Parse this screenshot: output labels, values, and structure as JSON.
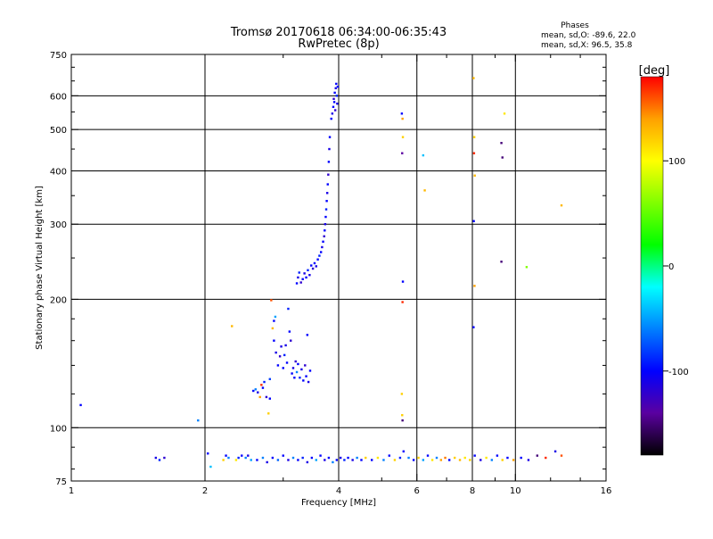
{
  "header": {
    "title": "Tromsø 20170618 06:34:00-06:35:43",
    "subtitle": "RwPretec (8p)"
  },
  "phase_stats": {
    "heading": "Phases",
    "line_o": "mean, sd,O: -89.6, 22.0",
    "line_x": "mean, sd,X:  96.5, 35.8"
  },
  "colorbar": {
    "unit_label": "[deg]",
    "range": [
      -180,
      180
    ],
    "ticks": [
      {
        "value": 100,
        "label": "100"
      },
      {
        "value": 0,
        "label": "0"
      },
      {
        "value": -100,
        "label": "-100"
      }
    ],
    "colors": [
      "#000000",
      "#5a00a0",
      "#0000ff",
      "#0080ff",
      "#00ffff",
      "#00ff00",
      "#80ff00",
      "#ffff00",
      "#ffa000",
      "#ff0000"
    ]
  },
  "chart_data": {
    "type": "scatter",
    "xlabel": "Frequency [MHz]",
    "ylabel": "Stationary phase Virtual Height [km]",
    "x_scale": "log2",
    "y_scale": "log",
    "xlim": [
      1,
      16
    ],
    "ylim": [
      75,
      750
    ],
    "x_ticks": [
      {
        "value": 1,
        "label": "1"
      },
      {
        "value": 2,
        "label": "2"
      },
      {
        "value": 4,
        "label": "4"
      },
      {
        "value": 6,
        "label": "6"
      },
      {
        "value": 8,
        "label": "8"
      },
      {
        "value": 10,
        "label": "10"
      },
      {
        "value": 16,
        "label": "16"
      }
    ],
    "y_ticks": [
      {
        "value": 75,
        "label": "75"
      },
      {
        "value": 100,
        "label": "100"
      },
      {
        "value": 200,
        "label": "200"
      },
      {
        "value": 300,
        "label": "300"
      },
      {
        "value": 400,
        "label": "400"
      },
      {
        "value": 500,
        "label": "500"
      },
      {
        "value": 600,
        "label": "600"
      },
      {
        "value": 750,
        "label": "750"
      }
    ],
    "grid_x": [
      2,
      4,
      6,
      8,
      10
    ],
    "grid_y": [
      100,
      200,
      300,
      400,
      500,
      600
    ],
    "points": [
      [
        1.05,
        113,
        -100
      ],
      [
        1.55,
        85,
        -110
      ],
      [
        1.58,
        84,
        -90
      ],
      [
        1.62,
        85,
        -120
      ],
      [
        1.93,
        104,
        -60
      ],
      [
        2.03,
        87,
        -100
      ],
      [
        2.06,
        81,
        -40
      ],
      [
        2.2,
        84,
        120
      ],
      [
        2.23,
        86,
        -100
      ],
      [
        2.26,
        85,
        -60
      ],
      [
        2.3,
        173,
        130
      ],
      [
        2.35,
        84,
        110
      ],
      [
        2.38,
        85,
        -90
      ],
      [
        2.42,
        86,
        -100
      ],
      [
        2.47,
        85,
        -60
      ],
      [
        2.5,
        86,
        -110
      ],
      [
        2.54,
        84,
        -50
      ],
      [
        2.57,
        122,
        -100
      ],
      [
        2.6,
        123,
        -60
      ],
      [
        2.63,
        121,
        -110
      ],
      [
        2.66,
        118,
        140
      ],
      [
        2.68,
        126,
        170
      ],
      [
        2.7,
        124,
        -100
      ],
      [
        2.72,
        128,
        -90
      ],
      [
        2.75,
        118,
        -120
      ],
      [
        2.78,
        108,
        120
      ],
      [
        2.8,
        117,
        -100
      ],
      [
        2.8,
        130,
        -80
      ],
      [
        2.82,
        199,
        160
      ],
      [
        2.84,
        171,
        130
      ],
      [
        2.86,
        178,
        -100
      ],
      [
        2.88,
        182,
        -50
      ],
      [
        2.86,
        160,
        -100
      ],
      [
        2.89,
        150,
        -110
      ],
      [
        2.92,
        140,
        -100
      ],
      [
        2.95,
        147,
        -120
      ],
      [
        2.97,
        155,
        -110
      ],
      [
        3.0,
        138,
        -100
      ],
      [
        3.02,
        148,
        -90
      ],
      [
        3.04,
        156,
        -110
      ],
      [
        3.06,
        142,
        -100
      ],
      [
        3.08,
        190,
        -90
      ],
      [
        3.1,
        168,
        -100
      ],
      [
        3.12,
        160,
        -120
      ],
      [
        3.14,
        134,
        -100
      ],
      [
        3.16,
        138,
        -110
      ],
      [
        3.18,
        131,
        -100
      ],
      [
        3.2,
        143,
        -120
      ],
      [
        3.22,
        135,
        -60
      ],
      [
        3.24,
        141,
        -100
      ],
      [
        3.27,
        131,
        -90
      ],
      [
        3.3,
        137,
        -110
      ],
      [
        3.33,
        129,
        -100
      ],
      [
        3.36,
        140,
        -120
      ],
      [
        3.38,
        132,
        -100
      ],
      [
        3.4,
        165,
        -100
      ],
      [
        3.42,
        128,
        -110
      ],
      [
        3.45,
        136,
        -100
      ],
      [
        3.22,
        218,
        -100
      ],
      [
        3.24,
        225,
        -110
      ],
      [
        3.26,
        231,
        -90
      ],
      [
        3.29,
        219,
        -120
      ],
      [
        3.32,
        223,
        -100
      ],
      [
        3.35,
        230,
        -110
      ],
      [
        3.38,
        225,
        -100
      ],
      [
        3.41,
        234,
        -90
      ],
      [
        3.44,
        228,
        -110
      ],
      [
        3.47,
        240,
        -100
      ],
      [
        3.5,
        236,
        -120
      ],
      [
        3.53,
        243,
        -100
      ],
      [
        3.56,
        239,
        -110
      ],
      [
        3.59,
        248,
        -100
      ],
      [
        3.62,
        253,
        -90
      ],
      [
        3.65,
        258,
        -100
      ],
      [
        3.67,
        265,
        -110
      ],
      [
        3.69,
        273,
        -100
      ],
      [
        3.71,
        281,
        -120
      ],
      [
        3.72,
        290,
        -100
      ],
      [
        3.73,
        300,
        -110
      ],
      [
        3.74,
        312,
        -100
      ],
      [
        3.75,
        325,
        -90
      ],
      [
        3.76,
        340,
        -100
      ],
      [
        3.77,
        355,
        -110
      ],
      [
        3.78,
        372,
        -100
      ],
      [
        3.79,
        392,
        -120
      ],
      [
        3.8,
        420,
        -100
      ],
      [
        3.81,
        450,
        -110
      ],
      [
        3.82,
        480,
        -100
      ],
      [
        3.85,
        530,
        -100
      ],
      [
        3.87,
        545,
        -110
      ],
      [
        3.89,
        565,
        -100
      ],
      [
        3.9,
        590,
        -120
      ],
      [
        3.92,
        610,
        -100
      ],
      [
        3.94,
        625,
        -110
      ],
      [
        3.95,
        640,
        -100
      ],
      [
        3.96,
        600,
        -90
      ],
      [
        3.97,
        575,
        -110
      ],
      [
        3.98,
        630,
        -100
      ],
      [
        3.93,
        555,
        -120
      ],
      [
        3.91,
        580,
        -100
      ],
      [
        2.62,
        84,
        -100
      ],
      [
        2.7,
        85,
        -60
      ],
      [
        2.76,
        83,
        -110
      ],
      [
        2.84,
        85,
        -100
      ],
      [
        2.92,
        84,
        -70
      ],
      [
        3.0,
        86,
        -100
      ],
      [
        3.08,
        84,
        -110
      ],
      [
        3.16,
        85,
        -60
      ],
      [
        3.24,
        84,
        -100
      ],
      [
        3.32,
        85,
        -90
      ],
      [
        3.4,
        83,
        -110
      ],
      [
        3.48,
        85,
        -100
      ],
      [
        3.56,
        84,
        -50
      ],
      [
        3.64,
        86,
        -100
      ],
      [
        3.72,
        84,
        -110
      ],
      [
        3.8,
        85,
        -100
      ],
      [
        3.88,
        83,
        -60
      ],
      [
        3.96,
        84,
        -100
      ],
      [
        4.04,
        85,
        -110
      ],
      [
        4.12,
        84,
        -90
      ],
      [
        4.2,
        85,
        -100
      ],
      [
        4.3,
        84,
        -110
      ],
      [
        4.4,
        85,
        -60
      ],
      [
        4.5,
        84,
        -100
      ],
      [
        4.6,
        85,
        120
      ],
      [
        4.75,
        84,
        -100
      ],
      [
        4.9,
        85,
        110
      ],
      [
        5.05,
        84,
        -60
      ],
      [
        5.2,
        86,
        -100
      ],
      [
        5.35,
        84,
        120
      ],
      [
        5.5,
        85,
        -90
      ],
      [
        5.6,
        88,
        -100
      ],
      [
        5.75,
        85,
        -60
      ],
      [
        5.9,
        84,
        -100
      ],
      [
        6.05,
        85,
        120
      ],
      [
        6.2,
        84,
        -50
      ],
      [
        6.35,
        86,
        -100
      ],
      [
        6.5,
        84,
        110
      ],
      [
        6.65,
        85,
        -60
      ],
      [
        6.8,
        84,
        140
      ],
      [
        6.95,
        85,
        150
      ],
      [
        7.1,
        84,
        -100
      ],
      [
        7.3,
        85,
        120
      ],
      [
        7.5,
        84,
        130
      ],
      [
        7.7,
        85,
        110
      ],
      [
        7.9,
        84,
        120
      ],
      [
        8.1,
        86,
        -100
      ],
      [
        8.35,
        84,
        -110
      ],
      [
        8.6,
        85,
        110
      ],
      [
        8.85,
        84,
        -60
      ],
      [
        9.1,
        86,
        -100
      ],
      [
        9.35,
        84,
        120
      ],
      [
        9.6,
        85,
        -100
      ],
      [
        9.9,
        84,
        140
      ],
      [
        10.3,
        85,
        -100
      ],
      [
        10.7,
        84,
        -110
      ],
      [
        11.2,
        86,
        -150
      ],
      [
        11.7,
        85,
        170
      ],
      [
        12.3,
        88,
        -110
      ],
      [
        12.7,
        86,
        160
      ],
      [
        5.55,
        545,
        -100
      ],
      [
        5.57,
        530,
        140
      ],
      [
        5.58,
        480,
        120
      ],
      [
        5.56,
        440,
        -140
      ],
      [
        5.58,
        220,
        -100
      ],
      [
        5.57,
        197,
        170
      ],
      [
        5.55,
        120,
        120
      ],
      [
        5.56,
        107,
        120
      ],
      [
        5.57,
        104,
        -150
      ],
      [
        6.2,
        435,
        -40
      ],
      [
        6.25,
        360,
        130
      ],
      [
        8.05,
        660,
        130
      ],
      [
        8.08,
        480,
        120
      ],
      [
        8.07,
        440,
        170
      ],
      [
        8.1,
        390,
        130
      ],
      [
        8.06,
        305,
        -100
      ],
      [
        8.09,
        215,
        140
      ],
      [
        8.05,
        172,
        -100
      ],
      [
        9.3,
        465,
        -150
      ],
      [
        9.35,
        430,
        -150
      ],
      [
        9.45,
        545,
        110
      ],
      [
        9.3,
        245,
        -150
      ],
      [
        10.6,
        238,
        60
      ],
      [
        12.7,
        332,
        130
      ]
    ]
  }
}
